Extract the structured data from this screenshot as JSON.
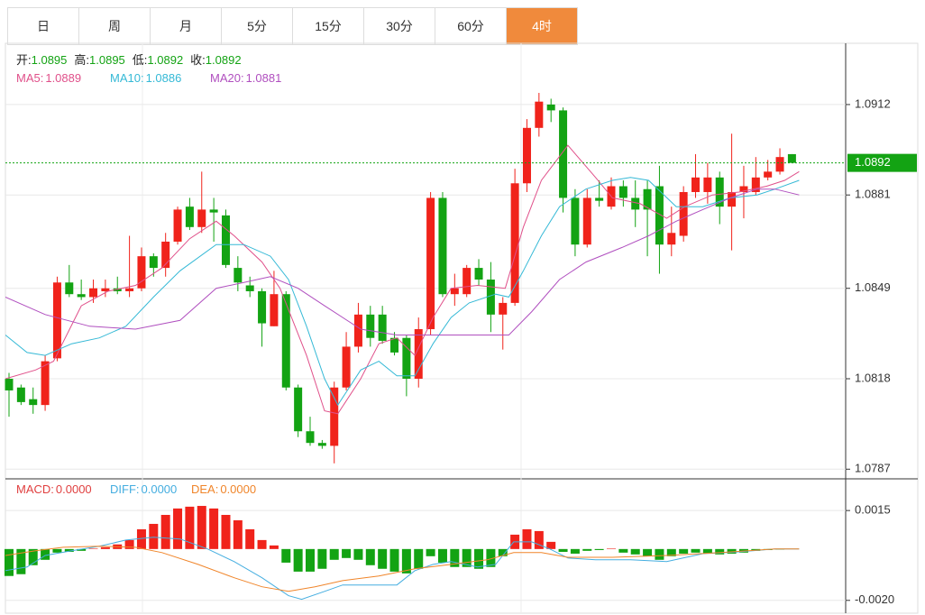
{
  "tabs": [
    "日",
    "周",
    "月",
    "5分",
    "15分",
    "30分",
    "60分",
    "4时"
  ],
  "active_tab": 7,
  "chart_data": [
    {
      "type": "candlestick",
      "ohlc_header": [
        {
          "label": "开:",
          "value": "1.0895"
        },
        {
          "label": "高:",
          "value": "1.0895"
        },
        {
          "label": "低:",
          "value": "1.0892"
        },
        {
          "label": "收:",
          "value": "1.0892"
        }
      ],
      "up_color": "#f0231b",
      "down_color": "#13a313",
      "open": [
        1.0818,
        1.0815,
        1.0811,
        1.0809,
        1.0825,
        1.0851,
        1.0847,
        1.0846,
        1.0848,
        1.0849,
        1.0848,
        1.0849,
        1.086,
        1.0856,
        1.0865,
        1.0877,
        1.087,
        1.0876,
        1.0874,
        1.0856,
        1.085,
        1.0848,
        1.0836,
        1.0847,
        1.0815,
        1.08,
        1.0796,
        1.0795,
        1.0815,
        1.0829,
        1.084,
        1.084,
        1.0832,
        1.0832,
        1.0818,
        1.0835,
        1.088,
        1.0847,
        1.0847,
        1.0856,
        1.0852,
        1.084,
        1.0844,
        1.0885,
        1.0904,
        1.0912,
        1.091,
        1.088,
        1.0864,
        1.088,
        1.0877,
        1.0884,
        1.088,
        1.0883,
        1.0884,
        1.0864,
        1.0867,
        1.0882,
        1.0882,
        1.0887,
        1.0877,
        1.0882,
        1.0882,
        1.0887,
        1.0889,
        1.0895
      ],
      "high": [
        1.082,
        1.0816,
        1.0815,
        1.0826,
        1.0853,
        1.0857,
        1.0852,
        1.0852,
        1.0852,
        1.0853,
        1.0867,
        1.0863,
        1.0861,
        1.0868,
        1.0877,
        1.088,
        1.0889,
        1.088,
        1.0876,
        1.086,
        1.0853,
        1.0849,
        1.0855,
        1.0848,
        1.0816,
        1.0805,
        1.0797,
        1.0817,
        1.0834,
        1.0844,
        1.0843,
        1.0843,
        1.0834,
        1.0833,
        1.0839,
        1.0882,
        1.0882,
        1.0854,
        1.0857,
        1.0859,
        1.0858,
        1.0846,
        1.089,
        1.0907,
        1.0916,
        1.0914,
        1.0911,
        1.0883,
        1.0883,
        1.0886,
        1.0887,
        1.0886,
        1.0886,
        1.0886,
        1.0891,
        1.0877,
        1.0884,
        1.0895,
        1.0892,
        1.0889,
        1.0902,
        1.0891,
        1.0894,
        1.0893,
        1.0897,
        1.0895
      ],
      "low": [
        1.0805,
        1.0809,
        1.0806,
        1.0807,
        1.0824,
        1.0846,
        1.0845,
        1.0844,
        1.0846,
        1.0847,
        1.0846,
        1.0848,
        1.0853,
        1.0853,
        1.0864,
        1.0869,
        1.0868,
        1.0865,
        1.0856,
        1.0848,
        1.0846,
        1.0829,
        1.0836,
        1.0814,
        1.0798,
        1.0795,
        1.0794,
        1.0789,
        1.0814,
        1.0827,
        1.0829,
        1.083,
        1.0826,
        1.0812,
        1.0815,
        1.0833,
        1.0846,
        1.0843,
        1.0846,
        1.085,
        1.0834,
        1.0828,
        1.0843,
        1.0882,
        1.0901,
        1.0906,
        1.0875,
        1.086,
        1.0863,
        1.0877,
        1.0876,
        1.0877,
        1.087,
        1.086,
        1.0854,
        1.086,
        1.0865,
        1.088,
        1.0878,
        1.0871,
        1.0862,
        1.0873,
        1.0881,
        1.0886,
        1.0888,
        1.0892
      ],
      "close": [
        1.0814,
        1.081,
        1.0809,
        1.0824,
        1.0851,
        1.0847,
        1.0846,
        1.0849,
        1.0849,
        1.0848,
        1.0849,
        1.086,
        1.0856,
        1.0865,
        1.0876,
        1.087,
        1.0876,
        1.0875,
        1.0857,
        1.0851,
        1.0848,
        1.0837,
        1.0847,
        1.0815,
        1.08,
        1.0796,
        1.0795,
        1.0815,
        1.0829,
        1.084,
        1.0832,
        1.0831,
        1.0827,
        1.0818,
        1.0835,
        1.088,
        1.0847,
        1.0849,
        1.0856,
        1.0852,
        1.084,
        1.0844,
        1.0885,
        1.0904,
        1.0913,
        1.091,
        1.088,
        1.0864,
        1.088,
        1.0879,
        1.0884,
        1.088,
        1.0876,
        1.0876,
        1.0864,
        1.0868,
        1.0882,
        1.0887,
        1.0887,
        1.0877,
        1.0882,
        1.0884,
        1.0887,
        1.0889,
        1.0894,
        1.0892
      ],
      "series": [
        {
          "name": "MA5:",
          "last": "1.0889",
          "color": "#e0508a",
          "x": [
            -0.3,
            2.2,
            3.7,
            6.0,
            8.2,
            10.5,
            12.7,
            15.0,
            17.2,
            18.7,
            21.0,
            22.5,
            24.7,
            26.2,
            27.3,
            29.2,
            30.7,
            32.2,
            33.7,
            35.2,
            36.7,
            38.9,
            41.2,
            42.7,
            44.2,
            46.4,
            48.7,
            50.1,
            52.4,
            54.6,
            56.1,
            58.4,
            60.6,
            62.9,
            64.4,
            65.6
          ],
          "values": [
            1.0818,
            1.0821,
            1.0824,
            1.0843,
            1.0848,
            1.085,
            1.0856,
            1.0866,
            1.0872,
            1.0867,
            1.0858,
            1.0849,
            1.0826,
            1.0807,
            1.0806,
            1.0818,
            1.083,
            1.0832,
            1.0826,
            1.0839,
            1.0849,
            1.085,
            1.0849,
            1.087,
            1.0886,
            1.0898,
            1.0887,
            1.088,
            1.0878,
            1.0873,
            1.0877,
            1.0881,
            1.0882,
            1.0884,
            1.0886,
            1.0889
          ]
        },
        {
          "name": "MA10:",
          "last": "1.0886",
          "color": "#35b9d6",
          "x": [
            -0.3,
            1.5,
            3.0,
            5.2,
            7.5,
            9.7,
            12.0,
            14.2,
            17.2,
            19.5,
            21.7,
            23.2,
            24.7,
            26.2,
            27.3,
            29.2,
            30.7,
            32.2,
            33.7,
            35.2,
            36.7,
            38.2,
            40.4,
            41.5,
            42.7,
            44.2,
            45.7,
            47.9,
            50.1,
            51.6,
            53.1,
            55.4,
            57.6,
            59.9,
            62.1,
            63.6,
            65.6
          ],
          "values": [
            1.0833,
            1.0827,
            1.0826,
            1.083,
            1.0832,
            1.0836,
            1.0846,
            1.0855,
            1.0864,
            1.0864,
            1.086,
            1.0852,
            1.0836,
            1.0818,
            1.0809,
            1.0821,
            1.0824,
            1.0819,
            1.0819,
            1.083,
            1.0839,
            1.0844,
            1.0847,
            1.0846,
            1.0855,
            1.0867,
            1.0877,
            1.0883,
            1.0886,
            1.0887,
            1.0886,
            1.0877,
            1.0877,
            1.088,
            1.0881,
            1.0883,
            1.0886
          ]
        },
        {
          "name": "MA20:",
          "last": "1.0881",
          "color": "#b04fbf",
          "x": [
            -0.3,
            3.0,
            6.7,
            10.5,
            14.2,
            17.2,
            19.5,
            21.7,
            24.0,
            26.2,
            29.2,
            32.2,
            35.2,
            37.4,
            40.4,
            41.5,
            43.4,
            45.7,
            47.9,
            50.9,
            53.1,
            55.4,
            57.6,
            59.9,
            62.1,
            63.6,
            65.6
          ],
          "values": [
            1.0846,
            1.084,
            1.0836,
            1.0835,
            1.0838,
            1.0849,
            1.0851,
            1.0853,
            1.0849,
            1.0843,
            1.0835,
            1.0833,
            1.0833,
            1.0833,
            1.0833,
            1.0833,
            1.0841,
            1.0852,
            1.0858,
            1.0863,
            1.0867,
            1.0872,
            1.0876,
            1.088,
            1.0883,
            1.0883,
            1.0881
          ]
        }
      ],
      "last_price": 1.0892,
      "last_price_color": "#13a313",
      "ylim": [
        1.0784,
        1.0933
      ],
      "yticks": [
        1.0787,
        1.0818,
        1.0849,
        1.0881,
        1.0912
      ]
    },
    {
      "type": "macd",
      "hist": {
        "name": "MACD:",
        "last": "0.0000",
        "color": "#e04040",
        "up_color": "#f0231b",
        "down_color": "#13a313",
        "values": [
          -0.00105,
          -0.00098,
          -0.00063,
          -0.00042,
          -0.00014,
          -0.00011,
          -7e-05,
          2e-05,
          7e-05,
          0.00018,
          0.00035,
          0.00077,
          0.00098,
          0.00133,
          0.00158,
          0.00165,
          0.00168,
          0.00158,
          0.00133,
          0.00112,
          0.00077,
          0.00035,
          0.00014,
          -0.00053,
          -0.00088,
          -0.00088,
          -0.00077,
          -0.00042,
          -0.00035,
          -0.00042,
          -0.00063,
          -0.00077,
          -0.00088,
          -0.00095,
          -0.00077,
          -0.00028,
          -0.00053,
          -0.0007,
          -0.0007,
          -0.00077,
          -0.0007,
          -0.00028,
          0.00056,
          0.00077,
          0.0007,
          0.00028,
          -0.00011,
          -0.00018,
          -7e-05,
          -4e-05,
          2e-05,
          -0.00014,
          -0.00021,
          -0.00028,
          -0.00042,
          -0.00028,
          -0.00018,
          -0.00014,
          -0.00018,
          -0.00021,
          -0.00018,
          -0.00014,
          -7e-05,
          -4e-05,
          -2e-05,
          0
        ]
      },
      "series": [
        {
          "name": "DIFF:",
          "last": "0.0000",
          "color": "#45aee0",
          "x": [
            -0.3,
            1.5,
            3.0,
            5.2,
            7.5,
            9.7,
            12.0,
            14.2,
            16.5,
            18.7,
            21.0,
            23.2,
            24.3,
            26.2,
            27.7,
            29.9,
            32.2,
            33.7,
            35.2,
            36.7,
            38.9,
            40.4,
            41.9,
            43.4,
            44.9,
            46.4,
            48.7,
            51.6,
            54.6,
            57.6,
            60.6,
            63.6,
            65.6
          ],
          "values": [
            -0.00084,
            -0.0007,
            -0.00025,
            -7e-05,
            0.00011,
            0.00035,
            0.00046,
            0.00039,
            0,
            -0.00049,
            -0.00112,
            -0.00182,
            -0.00196,
            -0.00165,
            -0.0014,
            -0.0014,
            -0.0014,
            -0.00084,
            -0.0006,
            -0.00049,
            -0.0007,
            -0.0006,
            0.00028,
            0.00028,
            0,
            -0.00035,
            -0.00042,
            -0.00042,
            -0.00049,
            -0.00018,
            -0.00011,
            0,
            0
          ]
        },
        {
          "name": "DEA:",
          "last": "0.0000",
          "color": "#f0852a",
          "x": [
            -0.3,
            2.2,
            4.5,
            7.5,
            10.5,
            12.7,
            15.7,
            18.7,
            21.0,
            23.2,
            25.4,
            27.7,
            30.7,
            33.7,
            36.7,
            39.7,
            41.9,
            44.2,
            46.4,
            50.1,
            54.6,
            59.1,
            63.6,
            65.6
          ],
          "values": [
            -0.00025,
            -7e-05,
            7e-05,
            0.00011,
            7e-05,
            -0.00014,
            -0.0006,
            -0.00112,
            -0.00147,
            -0.00165,
            -0.00147,
            -0.00123,
            -0.00105,
            -0.00077,
            -0.0006,
            -0.00042,
            -0.00014,
            -0.00014,
            -0.00032,
            -0.00032,
            -0.00025,
            -0.00014,
            0,
            0
          ]
        }
      ],
      "ylim": [
        -0.0025,
        0.0027
      ],
      "yticks": [
        {
          "value": -0.002,
          "label": "-0.0020"
        },
        0.0015
      ]
    }
  ]
}
